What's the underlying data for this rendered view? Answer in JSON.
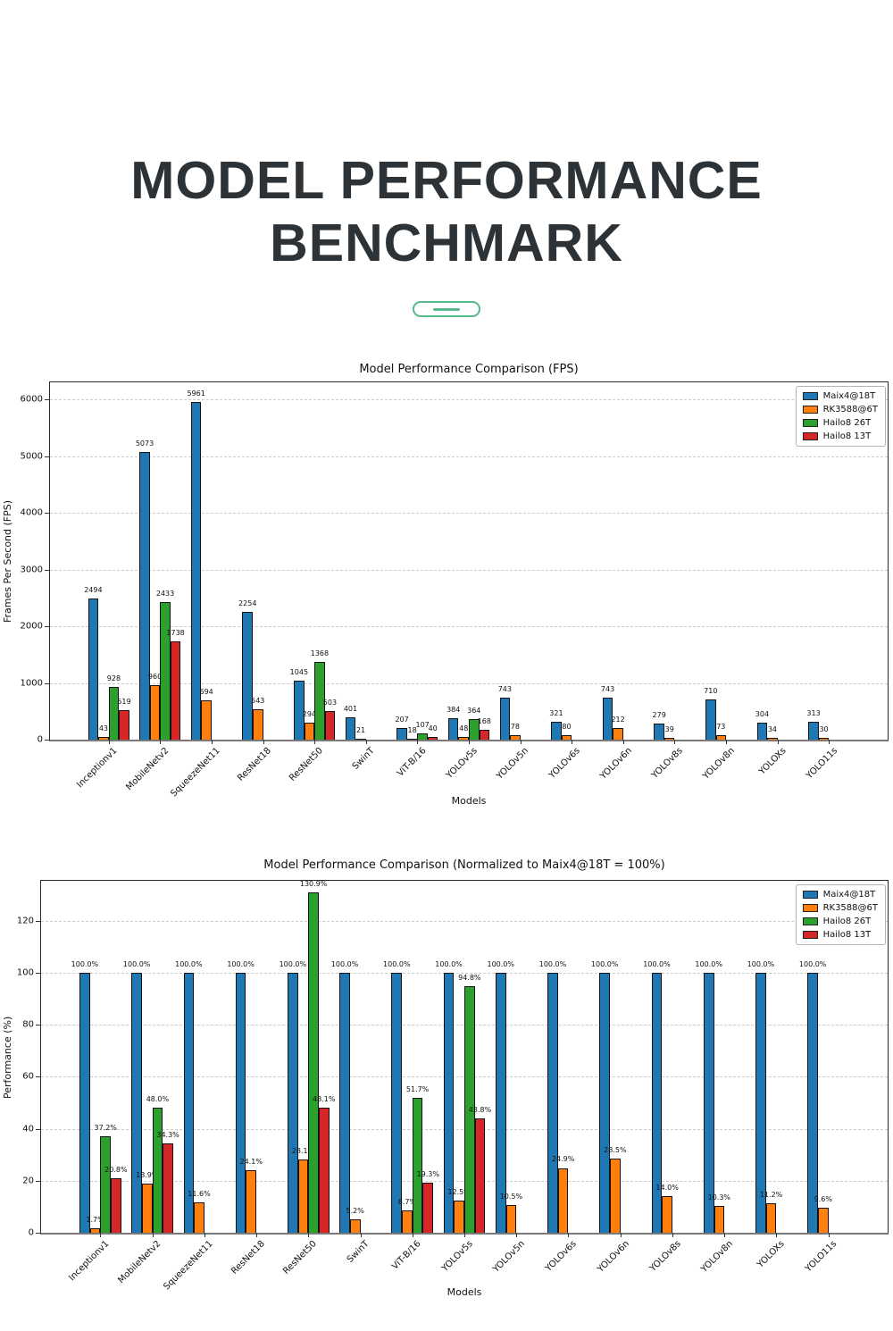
{
  "header": {
    "title_line1": "MODEL PERFORMANCE",
    "title_line2": "BENCHMARK",
    "accent_color": "#57b98c"
  },
  "chart_data": [
    {
      "type": "bar",
      "title": "Model Performance Comparison (FPS)",
      "xlabel": "Models",
      "ylabel": "Frames Per Second (FPS)",
      "ylim": [
        0,
        6300
      ],
      "yticks": [
        0,
        1000,
        2000,
        3000,
        4000,
        5000,
        6000
      ],
      "grid": true,
      "legend_position": "upper right",
      "value_label_format": "int",
      "categories": [
        "Inceptionv1",
        "MobileNetv2",
        "SqueezeNet11",
        "ResNet18",
        "ResNet50",
        "SwinT",
        "ViT-B/16",
        "YOLOv5s",
        "YOLOv5n",
        "YOLOv6s",
        "YOLOv6n",
        "YOLOv8s",
        "YOLOv8n",
        "YOLOXs",
        "YOLO11s"
      ],
      "series": [
        {
          "name": "Maix4@18T",
          "color": "#1f77b4",
          "values": [
            2494,
            5073,
            5961,
            2254,
            1045,
            401,
            207,
            384,
            743,
            321,
            743,
            279,
            710,
            304,
            313
          ]
        },
        {
          "name": "RK3588@6T",
          "color": "#ff7f0e",
          "values": [
            43,
            960,
            694,
            543,
            294,
            21,
            18,
            48,
            78,
            80,
            212,
            39,
            73,
            34,
            30
          ]
        },
        {
          "name": "Hailo8 26T",
          "color": "#2ca02c",
          "values": [
            928,
            2433,
            null,
            null,
            1368,
            null,
            107,
            364,
            null,
            null,
            null,
            null,
            null,
            null,
            null
          ]
        },
        {
          "name": "Hailo8 13T",
          "color": "#d62728",
          "values": [
            519,
            1738,
            null,
            null,
            503,
            null,
            40,
            168,
            null,
            null,
            null,
            null,
            null,
            null,
            null
          ]
        }
      ]
    },
    {
      "type": "bar",
      "title": "Model Performance Comparison (Normalized to Maix4@18T = 100%)",
      "xlabel": "Models",
      "ylabel": "Performance (%)",
      "ylim": [
        0,
        135.3
      ],
      "yticks": [
        0,
        20,
        40,
        60,
        80,
        100,
        120
      ],
      "grid": true,
      "legend_position": "upper right",
      "value_label_format": "pct1",
      "categories": [
        "Inceptionv1",
        "MobileNetv2",
        "SqueezeNet11",
        "ResNet18",
        "ResNet50",
        "SwinT",
        "ViT-B/16",
        "YOLOv5s",
        "YOLOv5n",
        "YOLOv6s",
        "YOLOv6n",
        "YOLOv8s",
        "YOLOv8n",
        "YOLOXs",
        "YOLO11s"
      ],
      "series": [
        {
          "name": "Maix4@18T",
          "color": "#1f77b4",
          "values": [
            100.0,
            100.0,
            100.0,
            100.0,
            100.0,
            100.0,
            100.0,
            100.0,
            100.0,
            100.0,
            100.0,
            100.0,
            100.0,
            100.0,
            100.0
          ]
        },
        {
          "name": "RK3588@6T",
          "color": "#ff7f0e",
          "values": [
            1.7,
            18.9,
            11.6,
            24.1,
            28.1,
            5.2,
            8.7,
            12.5,
            10.5,
            24.9,
            28.5,
            14.0,
            10.3,
            11.2,
            9.6
          ]
        },
        {
          "name": "Hailo8 26T",
          "color": "#2ca02c",
          "values": [
            37.2,
            48.0,
            null,
            null,
            130.9,
            null,
            51.7,
            94.8,
            null,
            null,
            null,
            null,
            null,
            null,
            null
          ]
        },
        {
          "name": "Hailo8 13T",
          "color": "#d62728",
          "values": [
            20.8,
            34.3,
            null,
            null,
            48.1,
            null,
            19.3,
            43.8,
            null,
            null,
            null,
            null,
            null,
            null,
            null
          ]
        }
      ]
    }
  ]
}
